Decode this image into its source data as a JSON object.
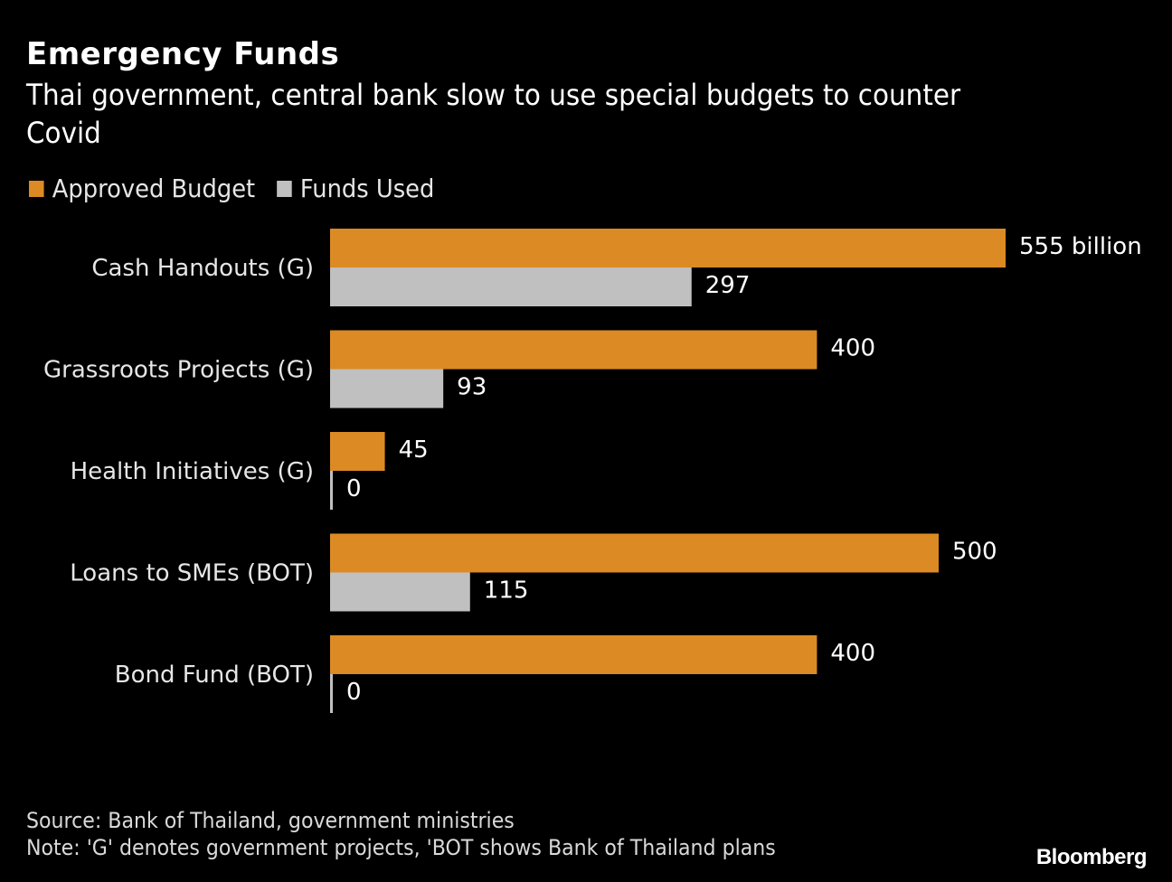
{
  "header": {
    "title": "Emergency Funds",
    "subtitle": "Thai government, central bank slow to use special budgets to counter Covid"
  },
  "legend": [
    {
      "label": "Approved Budget",
      "color": "#dc8a23"
    },
    {
      "label": "Funds Used",
      "color": "#c0c0c0"
    }
  ],
  "footer": {
    "source": "Source: Bank of Thailand, government ministries",
    "note": "Note: 'G' denotes government projects, 'BOT shows Bank of Thailand plans",
    "brand": "Bloomberg"
  },
  "chart_data": {
    "type": "bar",
    "orientation": "horizontal",
    "title": "Emergency Funds",
    "subtitle": "Thai government, central bank slow to use special budgets to counter Covid",
    "xlabel": "",
    "ylabel": "",
    "unit": "billion",
    "categories": [
      "Cash Handouts (G)",
      "Grassroots Projects (G)",
      "Health Initiatives (G)",
      "Loans to SMEs (BOT)",
      "Bond Fund (BOT)"
    ],
    "series": [
      {
        "name": "Approved Budget",
        "color": "#dc8a23",
        "values": [
          555,
          400,
          45,
          500,
          400
        ],
        "labels": [
          "555 billion",
          "400",
          "45",
          "500",
          "400"
        ]
      },
      {
        "name": "Funds Used",
        "color": "#c0c0c0",
        "values": [
          297,
          93,
          0,
          115,
          0
        ],
        "labels": [
          "297",
          "93",
          "0",
          "115",
          "0"
        ]
      }
    ],
    "xlim": [
      0,
      555
    ],
    "grid": false,
    "legend_position": "top-left"
  }
}
